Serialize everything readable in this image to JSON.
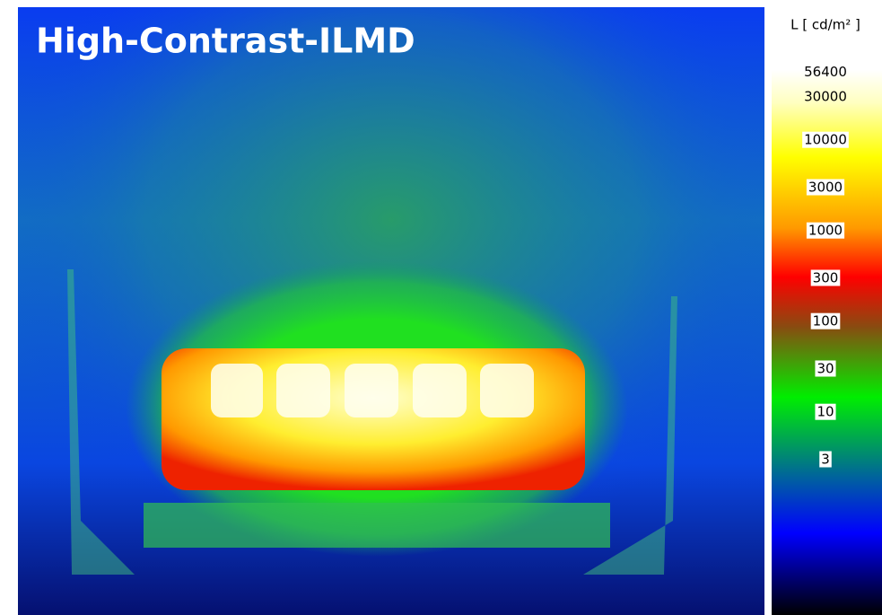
{
  "title": "High-Contrast-ILMD",
  "colorbar": {
    "unit": "L [ cd/m² ]",
    "scale": "log",
    "ticks": [
      56400,
      30000,
      10000,
      3000,
      1000,
      300,
      100,
      30,
      10,
      3
    ]
  }
}
